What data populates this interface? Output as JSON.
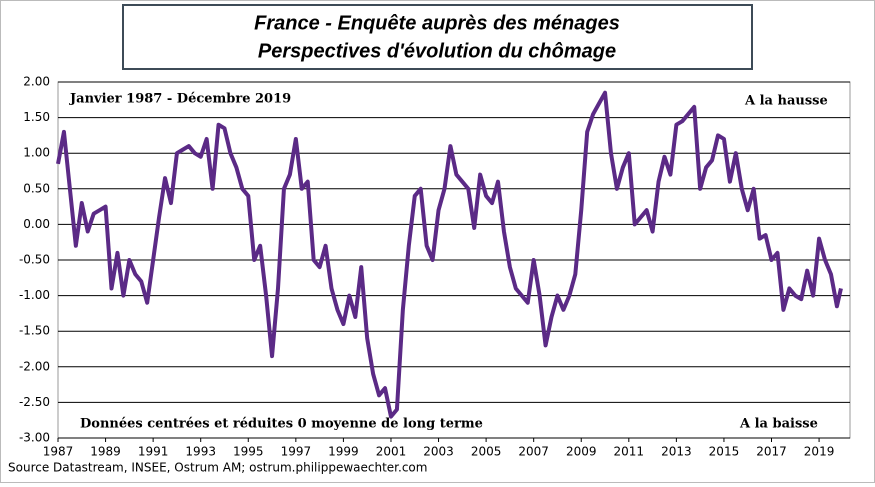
{
  "chart_data": {
    "type": "line",
    "title": "France - Enquête auprès des ménages",
    "subtitle": "Perspectives d'évolution du chômage",
    "annotations": [
      "Janvier 1987 - Décembre 2019",
      "A la hausse",
      "Données centrées et réduites 0 moyenne de long terme",
      "A la baisse"
    ],
    "source": "Source Datastream, INSEE, Ostrum AM; ostrum.philippewaechter.com",
    "color": "#5b2a86",
    "grid": true,
    "xlim": [
      1987,
      2020.3
    ],
    "xticks": [
      1987,
      1989,
      1991,
      1993,
      1995,
      1997,
      1999,
      2001,
      2003,
      2005,
      2007,
      2009,
      2011,
      2013,
      2015,
      2017,
      2019
    ],
    "ylim": [
      -3,
      2
    ],
    "yticks": [
      {
        "value": 2,
        "label": "2.00"
      },
      {
        "value": 1.5,
        "label": "1.50"
      },
      {
        "value": 1,
        "label": "1.00"
      },
      {
        "value": 0.5,
        "label": "0.50"
      },
      {
        "value": 0,
        "label": "0.00"
      },
      {
        "value": -0.5,
        "label": "-0.50"
      },
      {
        "value": -1,
        "label": "-1.00"
      },
      {
        "value": -1.5,
        "label": "-1.50"
      },
      {
        "value": -2,
        "label": "-2.00"
      },
      {
        "value": -2.5,
        "label": "-2.50"
      },
      {
        "value": -3,
        "label": "-3.00"
      }
    ],
    "x": [
      1987,
      1987.25,
      1987.5,
      1987.75,
      1988,
      1988.25,
      1988.5,
      1988.75,
      1989,
      1989.25,
      1989.5,
      1989.75,
      1990,
      1990.25,
      1990.5,
      1990.75,
      1991,
      1991.25,
      1991.5,
      1991.75,
      1992,
      1992.25,
      1992.5,
      1992.75,
      1993,
      1993.25,
      1993.5,
      1993.75,
      1994,
      1994.25,
      1994.5,
      1994.75,
      1995,
      1995.25,
      1995.5,
      1995.75,
      1996,
      1996.25,
      1996.5,
      1996.75,
      1997,
      1997.25,
      1997.5,
      1997.75,
      1998,
      1998.25,
      1998.5,
      1998.75,
      1999,
      1999.25,
      1999.5,
      1999.75,
      2000,
      2000.25,
      2000.5,
      2000.75,
      2001,
      2001.25,
      2001.5,
      2001.75,
      2002,
      2002.25,
      2002.5,
      2002.75,
      2003,
      2003.25,
      2003.5,
      2003.75,
      2004,
      2004.25,
      2004.5,
      2004.75,
      2005,
      2005.25,
      2005.5,
      2005.75,
      2006,
      2006.25,
      2006.5,
      2006.75,
      2007,
      2007.25,
      2007.5,
      2007.75,
      2008,
      2008.25,
      2008.5,
      2008.75,
      2009,
      2009.25,
      2009.5,
      2009.75,
      2010,
      2010.25,
      2010.5,
      2010.75,
      2011,
      2011.25,
      2011.5,
      2011.75,
      2012,
      2012.25,
      2012.5,
      2012.75,
      2013,
      2013.25,
      2013.5,
      2013.75,
      2014,
      2014.25,
      2014.5,
      2014.75,
      2015,
      2015.25,
      2015.5,
      2015.75,
      2016,
      2016.25,
      2016.5,
      2016.75,
      2017,
      2017.25,
      2017.5,
      2017.75,
      2018,
      2018.25,
      2018.5,
      2018.75,
      2019,
      2019.25,
      2019.5,
      2019.75,
      2019.92
    ],
    "values": [
      0.85,
      1.3,
      0.5,
      -0.3,
      0.3,
      -0.1,
      0.15,
      0.2,
      0.25,
      -0.9,
      -0.4,
      -1.0,
      -0.5,
      -0.7,
      -0.8,
      -1.1,
      -0.5,
      0.1,
      0.65,
      0.3,
      1.0,
      1.05,
      1.1,
      1.0,
      0.95,
      1.2,
      0.5,
      1.4,
      1.35,
      1.0,
      0.8,
      0.5,
      0.4,
      -0.5,
      -0.3,
      -1.0,
      -1.85,
      -0.9,
      0.5,
      0.7,
      1.2,
      0.5,
      0.6,
      -0.5,
      -0.6,
      -0.3,
      -0.9,
      -1.2,
      -1.4,
      -1.0,
      -1.3,
      -0.6,
      -1.6,
      -2.1,
      -2.4,
      -2.3,
      -2.7,
      -2.6,
      -1.2,
      -0.3,
      0.4,
      0.5,
      -0.3,
      -0.5,
      0.2,
      0.5,
      1.1,
      0.7,
      0.6,
      0.5,
      -0.05,
      0.7,
      0.4,
      0.3,
      0.6,
      -0.1,
      -0.6,
      -0.9,
      -1.0,
      -1.1,
      -0.5,
      -1.0,
      -1.7,
      -1.3,
      -1.0,
      -1.2,
      -1.0,
      -0.7,
      0.2,
      1.3,
      1.55,
      1.7,
      1.85,
      1.0,
      0.5,
      0.8,
      1.0,
      0.0,
      0.1,
      0.2,
      -0.1,
      0.6,
      0.95,
      0.7,
      1.4,
      1.45,
      1.55,
      1.65,
      0.5,
      0.8,
      0.9,
      1.25,
      1.2,
      0.6,
      1.0,
      0.5,
      0.2,
      0.5,
      -0.2,
      -0.15,
      -0.5,
      -0.4,
      -1.2,
      -0.9,
      -1.0,
      -1.05,
      -0.65,
      -1.0,
      -0.2,
      -0.5,
      -0.7,
      -1.15,
      -0.9
    ]
  }
}
